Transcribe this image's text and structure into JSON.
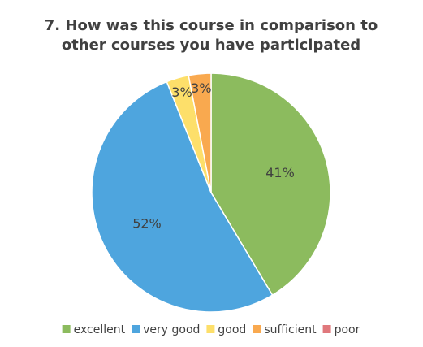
{
  "chart_data": {
    "type": "pie",
    "title": "7. How was this course in comparison to other courses you have participated",
    "categories": [
      "excellent",
      "very good",
      "good",
      "sufficient",
      "poor"
    ],
    "values": [
      41,
      52,
      3,
      3,
      0
    ],
    "value_labels": [
      "41%",
      "52%",
      "3%",
      "3%",
      null
    ],
    "colors": [
      "#8cbb5e",
      "#4ea5de",
      "#fddf6a",
      "#f9a94f",
      "#e0787c"
    ],
    "legend": "bottom"
  }
}
